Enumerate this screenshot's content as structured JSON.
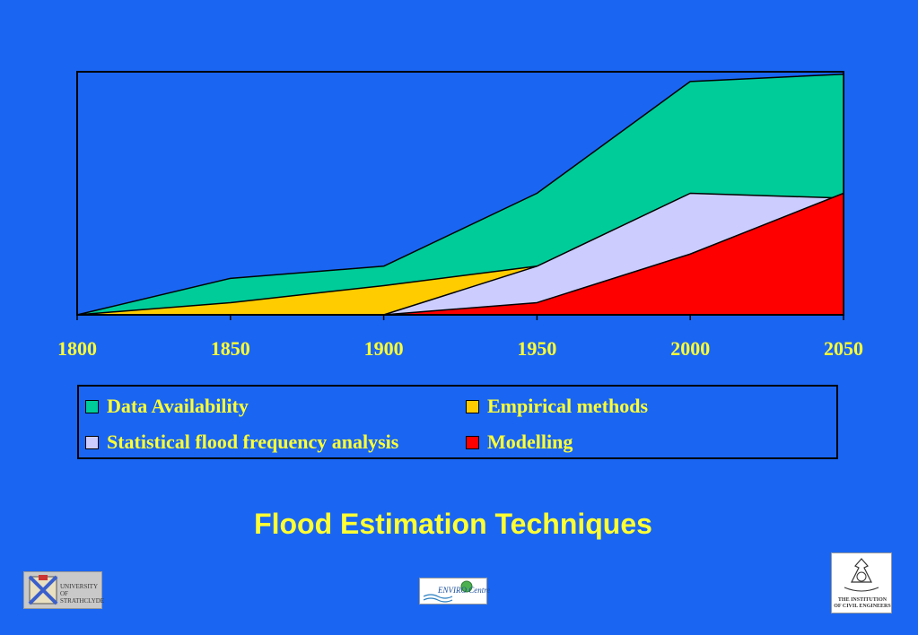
{
  "colors": {
    "background": "#1a66f2",
    "text": "#ffff33",
    "data_availability": "#00cc99",
    "empirical_methods": "#ffcc00",
    "statistical": "#ccccff",
    "modelling": "#ff0000"
  },
  "chart_data": {
    "type": "area",
    "x": [
      1800,
      1850,
      1900,
      1950,
      2000,
      2050
    ],
    "xlim": [
      1800,
      2050
    ],
    "ylim": [
      0,
      100
    ],
    "grid": false,
    "legend_position": "bottom",
    "series": [
      {
        "name": "Data Availability",
        "color": "#00cc99",
        "values": [
          0,
          15,
          20,
          50,
          96,
          99
        ]
      },
      {
        "name": "Empirical methods",
        "color": "#ffcc00",
        "values": [
          0,
          5,
          12,
          20,
          null,
          null
        ]
      },
      {
        "name": "Statistical flood frequency analysis",
        "color": "#ccccff",
        "values": [
          null,
          null,
          0,
          20,
          50,
          48
        ]
      },
      {
        "name": "Modelling",
        "color": "#ff0000",
        "values": [
          null,
          null,
          0,
          5,
          25,
          50
        ]
      }
    ],
    "tick_labels": [
      "1800",
      "1850",
      "1900",
      "1950",
      "2000",
      "2050"
    ]
  },
  "legend": {
    "items": [
      {
        "label": "Data Availability",
        "color": "#00cc99"
      },
      {
        "label": "Empirical methods",
        "color": "#ffcc00"
      },
      {
        "label": "Statistical flood frequency analysis",
        "color": "#ccccff"
      },
      {
        "label": "Modelling",
        "color": "#ff0000"
      }
    ]
  },
  "title": "Flood Estimation Techniques",
  "logos": {
    "strathclyde": "UNIVERSITY OF STRATHCLYDE",
    "enviro": "ENVIRO Centre",
    "ice": "THE INSTITUTION OF CIVIL ENGINEERS"
  }
}
